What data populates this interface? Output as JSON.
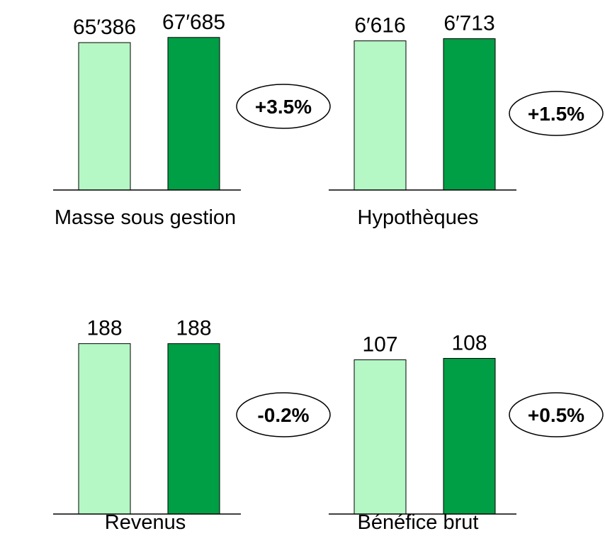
{
  "chart_data": [
    {
      "type": "bar",
      "categories": [
        null,
        null
      ],
      "values": [
        65386,
        67685
      ],
      "value_labels": [
        "65′386",
        "67′685"
      ],
      "colors": [
        "#b5f7c5",
        "#009e45"
      ],
      "ylim": [
        0,
        78000
      ],
      "annotation": "+3.5%",
      "label": "Masse sous gestion"
    },
    {
      "type": "bar",
      "categories": [
        null,
        null
      ],
      "values": [
        6616,
        6713
      ],
      "value_labels": [
        "6′616",
        "6′713"
      ],
      "colors": [
        "#b5f7c5",
        "#009e45"
      ],
      "ylim": [
        0,
        7800
      ],
      "annotation": "+1.5%",
      "label": "Hypothèques"
    },
    {
      "type": "bar",
      "categories": [
        null,
        null
      ],
      "values": [
        188,
        188
      ],
      "colors": [
        "#b5f7c5",
        "#009e45"
      ],
      "ylim": [
        0,
        194
      ],
      "annotation": "-0.2%",
      "label": "Revenus"
    },
    {
      "type": "bar",
      "categories": [
        null,
        null
      ],
      "values": [
        107,
        108
      ],
      "colors": [
        "#b5f7c5",
        "#009e45"
      ],
      "ylim": [
        0,
        122
      ],
      "annotation": "+0.5%",
      "label": "Bénéfice brut"
    }
  ]
}
